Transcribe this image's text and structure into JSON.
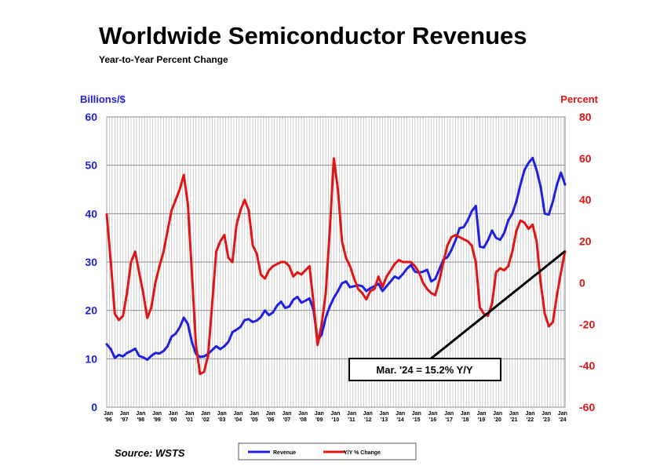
{
  "chart_data": {
    "type": "line",
    "title": "Worldwide Semiconductor Revenues",
    "subtitle": "Year-to-Year Percent Change",
    "y_left_label": "Billions/$",
    "y_right_label": "Percent",
    "ylim_left": [
      0,
      60
    ],
    "ylim_right": [
      -60,
      80
    ],
    "y_left_ticks": [
      "0",
      "10",
      "20",
      "30",
      "40",
      "50",
      "60"
    ],
    "y_right_ticks": [
      "-60",
      "-40",
      "-20",
      "0",
      "20",
      "40",
      "60",
      "80"
    ],
    "x_ticks": [
      {
        "top": "Jan",
        "bottom": "'96"
      },
      {
        "top": "Jan",
        "bottom": "'97"
      },
      {
        "top": "Jan",
        "bottom": "'98"
      },
      {
        "top": "Jan",
        "bottom": "'99"
      },
      {
        "top": "Jan",
        "bottom": "'00"
      },
      {
        "top": "Jan",
        "bottom": "'01"
      },
      {
        "top": "Jan",
        "bottom": "'02"
      },
      {
        "top": "Jan",
        "bottom": "'03"
      },
      {
        "top": "Jan",
        "bottom": "'04"
      },
      {
        "top": "Jan",
        "bottom": "'05"
      },
      {
        "top": "Jan",
        "bottom": "'06"
      },
      {
        "top": "Jan",
        "bottom": "'07"
      },
      {
        "top": "Jan",
        "bottom": "'08"
      },
      {
        "top": "Jan",
        "bottom": "'09"
      },
      {
        "top": "Jan",
        "bottom": "'10"
      },
      {
        "top": "Jan",
        "bottom": "'11"
      },
      {
        "top": "Jan",
        "bottom": "'12"
      },
      {
        "top": "Jan",
        "bottom": "'13"
      },
      {
        "top": "Jan",
        "bottom": "'14"
      },
      {
        "top": "Jan",
        "bottom": "'15"
      },
      {
        "top": "Jan",
        "bottom": "'16"
      },
      {
        "top": "Jan",
        "bottom": "'17"
      },
      {
        "top": "Jan",
        "bottom": "'18"
      },
      {
        "top": "Jan",
        "bottom": "'19"
      },
      {
        "top": "Jan",
        "bottom": "'20"
      },
      {
        "top": "Jan",
        "bottom": "'21"
      },
      {
        "top": "Jan",
        "bottom": "'22"
      },
      {
        "top": "Jan",
        "bottom": "'23"
      },
      {
        "top": "Jan",
        "bottom": "'24"
      }
    ],
    "x_range": [
      1996.0,
      2024.25
    ],
    "grid": "vertical-and-horizontal",
    "legend_position": "bottom",
    "series": [
      {
        "name": "Revenue",
        "axis": "left",
        "color": "#1f1fe0",
        "points": [
          [
            1996.0,
            13.0
          ],
          [
            1996.25,
            12.0
          ],
          [
            1996.5,
            10.2
          ],
          [
            1996.75,
            10.8
          ],
          [
            1997.0,
            10.5
          ],
          [
            1997.25,
            11.2
          ],
          [
            1997.5,
            11.6
          ],
          [
            1997.75,
            12.1
          ],
          [
            1998.0,
            10.6
          ],
          [
            1998.25,
            10.3
          ],
          [
            1998.5,
            9.8
          ],
          [
            1998.75,
            10.6
          ],
          [
            1999.0,
            11.2
          ],
          [
            1999.25,
            11.1
          ],
          [
            1999.5,
            11.6
          ],
          [
            1999.75,
            12.6
          ],
          [
            2000.0,
            14.6
          ],
          [
            2000.25,
            15.2
          ],
          [
            2000.5,
            16.5
          ],
          [
            2000.75,
            18.5
          ],
          [
            2001.0,
            17.2
          ],
          [
            2001.25,
            13.5
          ],
          [
            2001.5,
            11.0
          ],
          [
            2001.75,
            10.4
          ],
          [
            2002.0,
            10.5
          ],
          [
            2002.25,
            11.0
          ],
          [
            2002.5,
            11.8
          ],
          [
            2002.75,
            12.6
          ],
          [
            2003.0,
            12.0
          ],
          [
            2003.25,
            12.6
          ],
          [
            2003.5,
            13.5
          ],
          [
            2003.75,
            15.5
          ],
          [
            2004.0,
            16.0
          ],
          [
            2004.25,
            16.6
          ],
          [
            2004.5,
            18.0
          ],
          [
            2004.75,
            18.2
          ],
          [
            2005.0,
            17.6
          ],
          [
            2005.25,
            17.9
          ],
          [
            2005.5,
            18.6
          ],
          [
            2005.75,
            20.0
          ],
          [
            2006.0,
            19.0
          ],
          [
            2006.25,
            19.6
          ],
          [
            2006.5,
            21.0
          ],
          [
            2006.75,
            21.8
          ],
          [
            2007.0,
            20.5
          ],
          [
            2007.25,
            20.8
          ],
          [
            2007.5,
            22.2
          ],
          [
            2007.75,
            22.8
          ],
          [
            2008.0,
            21.6
          ],
          [
            2008.25,
            22.0
          ],
          [
            2008.5,
            22.5
          ],
          [
            2008.75,
            20.0
          ],
          [
            2009.0,
            13.8
          ],
          [
            2009.25,
            15.0
          ],
          [
            2009.5,
            18.5
          ],
          [
            2009.75,
            20.8
          ],
          [
            2010.0,
            22.6
          ],
          [
            2010.25,
            24.0
          ],
          [
            2010.5,
            25.6
          ],
          [
            2010.75,
            26.0
          ],
          [
            2011.0,
            24.8
          ],
          [
            2011.25,
            25.0
          ],
          [
            2011.5,
            25.2
          ],
          [
            2011.75,
            25.0
          ],
          [
            2012.0,
            24.0
          ],
          [
            2012.25,
            24.6
          ],
          [
            2012.5,
            25.0
          ],
          [
            2012.75,
            25.5
          ],
          [
            2013.0,
            24.0
          ],
          [
            2013.25,
            25.0
          ],
          [
            2013.5,
            26.0
          ],
          [
            2013.75,
            27.0
          ],
          [
            2014.0,
            26.6
          ],
          [
            2014.25,
            27.5
          ],
          [
            2014.5,
            28.6
          ],
          [
            2014.75,
            29.4
          ],
          [
            2015.0,
            28.0
          ],
          [
            2015.25,
            27.8
          ],
          [
            2015.5,
            28.0
          ],
          [
            2015.75,
            28.4
          ],
          [
            2016.0,
            26.0
          ],
          [
            2016.25,
            26.5
          ],
          [
            2016.5,
            28.5
          ],
          [
            2016.75,
            30.5
          ],
          [
            2017.0,
            31.0
          ],
          [
            2017.25,
            32.5
          ],
          [
            2017.5,
            34.5
          ],
          [
            2017.75,
            37.0
          ],
          [
            2018.0,
            37.2
          ],
          [
            2018.25,
            38.6
          ],
          [
            2018.5,
            40.5
          ],
          [
            2018.75,
            41.6
          ],
          [
            2019.0,
            33.2
          ],
          [
            2019.25,
            33.0
          ],
          [
            2019.5,
            34.5
          ],
          [
            2019.75,
            36.5
          ],
          [
            2020.0,
            35.0
          ],
          [
            2020.25,
            34.6
          ],
          [
            2020.5,
            36.0
          ],
          [
            2020.75,
            38.6
          ],
          [
            2021.0,
            40.0
          ],
          [
            2021.25,
            42.5
          ],
          [
            2021.5,
            46.0
          ],
          [
            2021.75,
            49.0
          ],
          [
            2022.0,
            50.5
          ],
          [
            2022.25,
            51.5
          ],
          [
            2022.5,
            49.0
          ],
          [
            2022.75,
            45.5
          ],
          [
            2023.0,
            40.0
          ],
          [
            2023.25,
            39.8
          ],
          [
            2023.5,
            42.5
          ],
          [
            2023.75,
            46.0
          ],
          [
            2024.0,
            48.5
          ],
          [
            2024.25,
            46.0
          ]
        ]
      },
      {
        "name": "Y/Y % Change",
        "axis": "right",
        "color": "#e01515",
        "points": [
          [
            1996.0,
            33
          ],
          [
            1996.25,
            10
          ],
          [
            1996.5,
            -15
          ],
          [
            1996.75,
            -18
          ],
          [
            1997.0,
            -16
          ],
          [
            1997.25,
            -5
          ],
          [
            1997.5,
            10
          ],
          [
            1997.75,
            15
          ],
          [
            1998.0,
            5
          ],
          [
            1998.25,
            -5
          ],
          [
            1998.5,
            -17
          ],
          [
            1998.75,
            -12
          ],
          [
            1999.0,
            0
          ],
          [
            1999.25,
            8
          ],
          [
            1999.5,
            15
          ],
          [
            1999.75,
            25
          ],
          [
            2000.0,
            35
          ],
          [
            2000.25,
            40
          ],
          [
            2000.5,
            45
          ],
          [
            2000.75,
            52
          ],
          [
            2001.0,
            38
          ],
          [
            2001.25,
            5
          ],
          [
            2001.5,
            -30
          ],
          [
            2001.75,
            -44
          ],
          [
            2002.0,
            -43
          ],
          [
            2002.25,
            -35
          ],
          [
            2002.5,
            -10
          ],
          [
            2002.75,
            15
          ],
          [
            2003.0,
            20
          ],
          [
            2003.25,
            23
          ],
          [
            2003.5,
            12
          ],
          [
            2003.75,
            10
          ],
          [
            2004.0,
            28
          ],
          [
            2004.25,
            35
          ],
          [
            2004.5,
            40
          ],
          [
            2004.75,
            35
          ],
          [
            2005.0,
            18
          ],
          [
            2005.25,
            14
          ],
          [
            2005.5,
            4
          ],
          [
            2005.75,
            2
          ],
          [
            2006.0,
            6
          ],
          [
            2006.25,
            8
          ],
          [
            2006.5,
            9
          ],
          [
            2006.75,
            10
          ],
          [
            2007.0,
            10
          ],
          [
            2007.25,
            8
          ],
          [
            2007.5,
            3
          ],
          [
            2007.75,
            5
          ],
          [
            2008.0,
            4
          ],
          [
            2008.25,
            6
          ],
          [
            2008.5,
            8
          ],
          [
            2008.75,
            -10
          ],
          [
            2009.0,
            -30
          ],
          [
            2009.25,
            -20
          ],
          [
            2009.5,
            -5
          ],
          [
            2009.75,
            25
          ],
          [
            2010.0,
            60
          ],
          [
            2010.25,
            45
          ],
          [
            2010.5,
            20
          ],
          [
            2010.75,
            12
          ],
          [
            2011.0,
            8
          ],
          [
            2011.25,
            2
          ],
          [
            2011.5,
            -3
          ],
          [
            2011.75,
            -5
          ],
          [
            2012.0,
            -8
          ],
          [
            2012.25,
            -4
          ],
          [
            2012.5,
            -3
          ],
          [
            2012.75,
            3
          ],
          [
            2013.0,
            -2
          ],
          [
            2013.25,
            3
          ],
          [
            2013.5,
            6
          ],
          [
            2013.75,
            9
          ],
          [
            2014.0,
            11
          ],
          [
            2014.25,
            10
          ],
          [
            2014.5,
            10
          ],
          [
            2014.75,
            10
          ],
          [
            2015.0,
            8
          ],
          [
            2015.25,
            5
          ],
          [
            2015.5,
            0
          ],
          [
            2015.75,
            -3
          ],
          [
            2016.0,
            -5
          ],
          [
            2016.25,
            -6
          ],
          [
            2016.5,
            1
          ],
          [
            2016.75,
            10
          ],
          [
            2017.0,
            18
          ],
          [
            2017.25,
            22
          ],
          [
            2017.5,
            23
          ],
          [
            2017.75,
            22
          ],
          [
            2018.0,
            21
          ],
          [
            2018.25,
            20
          ],
          [
            2018.5,
            18
          ],
          [
            2018.75,
            10
          ],
          [
            2019.0,
            -12
          ],
          [
            2019.25,
            -15
          ],
          [
            2019.5,
            -16
          ],
          [
            2019.75,
            -10
          ],
          [
            2020.0,
            5
          ],
          [
            2020.25,
            7
          ],
          [
            2020.5,
            6
          ],
          [
            2020.75,
            8
          ],
          [
            2021.0,
            15
          ],
          [
            2021.25,
            25
          ],
          [
            2021.5,
            30
          ],
          [
            2021.75,
            29
          ],
          [
            2022.0,
            26
          ],
          [
            2022.25,
            28
          ],
          [
            2022.5,
            20
          ],
          [
            2022.75,
            0
          ],
          [
            2023.0,
            -15
          ],
          [
            2023.25,
            -21
          ],
          [
            2023.5,
            -19
          ],
          [
            2023.75,
            -6
          ],
          [
            2024.0,
            5
          ],
          [
            2024.25,
            15.2
          ]
        ]
      }
    ],
    "annotation": {
      "text": "Mar. '24 = 15.2% Y/Y",
      "x": 2024.25,
      "y": 15.2,
      "axis": "right"
    },
    "source": "Source: WSTS",
    "legend": [
      {
        "label": "Revenue",
        "color": "#1f1fe0"
      },
      {
        "label": "Y/Y % Change",
        "color": "#e01515"
      }
    ]
  }
}
